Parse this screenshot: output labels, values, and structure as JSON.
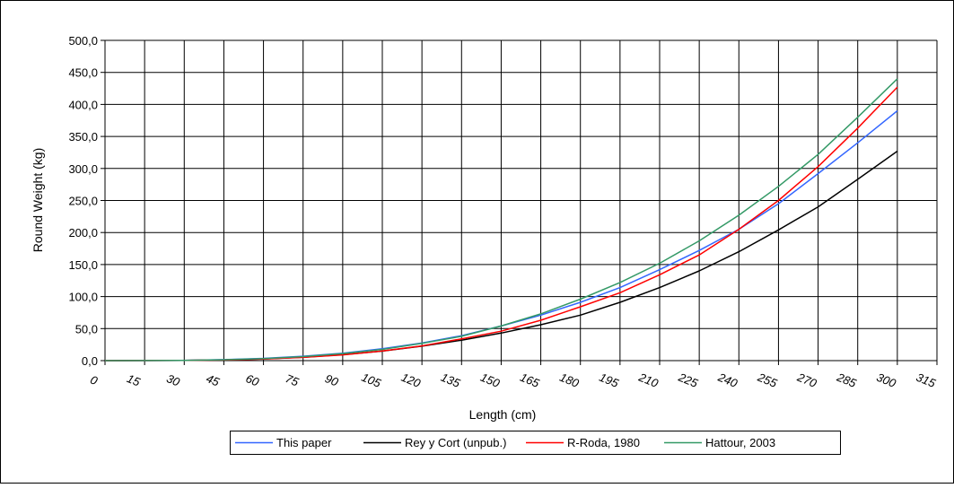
{
  "chart_data": {
    "type": "line",
    "title": "",
    "xlabel": "Length (cm)",
    "ylabel": "Round Weight (kg)",
    "xlim": [
      0,
      315
    ],
    "ylim": [
      0,
      500
    ],
    "x_ticks": [
      "0",
      "15",
      "30",
      "45",
      "60",
      "75",
      "90",
      "105",
      "120",
      "135",
      "150",
      "165",
      "180",
      "195",
      "210",
      "225",
      "240",
      "255",
      "270",
      "285",
      "300",
      "315"
    ],
    "y_ticks": [
      "0,0",
      "50,0",
      "100,0",
      "150,0",
      "200,0",
      "250,0",
      "300,0",
      "350,0",
      "400,0",
      "450,0",
      "500,0"
    ],
    "grid": true,
    "legend_position": "bottom",
    "x": [
      0,
      30,
      45,
      60,
      75,
      90,
      105,
      120,
      135,
      150,
      165,
      180,
      195,
      210,
      225,
      240,
      255,
      270,
      285,
      300
    ],
    "series": [
      {
        "name": "This paper",
        "color": "#3366ff",
        "values": [
          0,
          0.4,
          1.5,
          3.5,
          6.8,
          11.5,
          18.5,
          27.5,
          39,
          54,
          71,
          91,
          114,
          142,
          172,
          205,
          245,
          292,
          340,
          390
        ]
      },
      {
        "name": "Rey y Cort (unpub.)",
        "color": "#000000",
        "values": [
          0,
          0.3,
          1.1,
          2.6,
          5.3,
          9.2,
          14.8,
          22.5,
          32,
          43,
          56,
          71,
          91,
          114,
          140,
          170,
          204,
          240,
          283,
          327
        ]
      },
      {
        "name": "R-Roda, 1980",
        "color": "#ff0000",
        "values": [
          0,
          0.25,
          1,
          2.4,
          5,
          9,
          15,
          23,
          34,
          46,
          63,
          84,
          106,
          134,
          165,
          205,
          250,
          303,
          363,
          427
        ]
      },
      {
        "name": "Hattour, 2003",
        "color": "#339966",
        "values": [
          0,
          0.4,
          1.4,
          3.2,
          6.3,
          11,
          17.5,
          27,
          38,
          54,
          73,
          96,
          122,
          152,
          187,
          227,
          272,
          322,
          380,
          440
        ]
      }
    ]
  }
}
